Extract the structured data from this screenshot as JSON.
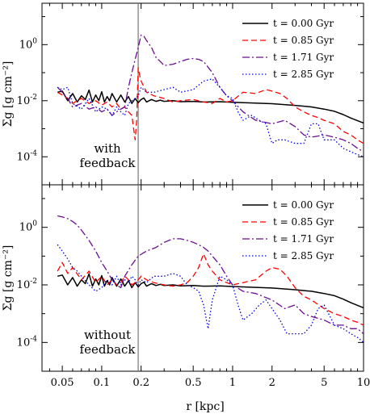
{
  "chart_data": [
    {
      "type": "line",
      "annotation": [
        "with",
        "feedback"
      ],
      "ylabel": "Σg [g cm⁻²]",
      "xlabel": "",
      "xscale": "log",
      "yscale": "log",
      "xlim": [
        0.035,
        10
      ],
      "ylim": [
        1e-05,
        30
      ],
      "xticks": [
        {
          "v": 0.05,
          "label": "0.05"
        },
        {
          "v": 0.1,
          "label": "0.1"
        },
        {
          "v": 0.2,
          "label": "0.2"
        },
        {
          "v": 0.5,
          "label": "0.5"
        },
        {
          "v": 1,
          "label": "1"
        },
        {
          "v": 2,
          "label": "2"
        },
        {
          "v": 5,
          "label": "5"
        },
        {
          "v": 10,
          "label": "10"
        }
      ],
      "show_xtick_labels": false,
      "yticks": [
        {
          "v": 1,
          "b": "10",
          "e": "0"
        },
        {
          "v": 0.01,
          "b": "10",
          "e": "-2"
        },
        {
          "v": 0.0001,
          "b": "10",
          "e": "-4"
        }
      ],
      "vline_x": 0.19,
      "legend_position": "top-right",
      "series": [
        {
          "name": "t = 0.00 Gyr",
          "color": "#000000",
          "dash": "",
          "x": [
            0.046,
            0.05,
            0.055,
            0.06,
            0.065,
            0.07,
            0.075,
            0.08,
            0.085,
            0.09,
            0.095,
            0.1,
            0.105,
            0.11,
            0.115,
            0.12,
            0.13,
            0.14,
            0.15,
            0.16,
            0.17,
            0.18,
            0.19,
            0.2,
            0.21,
            0.22,
            0.24,
            0.26,
            0.28,
            0.3,
            0.35,
            0.4,
            0.5,
            0.6,
            0.8,
            1,
            1.5,
            2,
            3,
            4,
            5,
            6,
            7,
            8,
            10
          ],
          "y": [
            0.02,
            0.022,
            0.01,
            0.018,
            0.009,
            0.015,
            0.011,
            0.024,
            0.009,
            0.016,
            0.01,
            0.021,
            0.009,
            0.014,
            0.01,
            0.018,
            0.009,
            0.016,
            0.009,
            0.014,
            0.008,
            0.012,
            0.0085,
            0.011,
            0.0125,
            0.009,
            0.011,
            0.0095,
            0.0105,
            0.0095,
            0.01,
            0.0092,
            0.0095,
            0.009,
            0.0092,
            0.0088,
            0.0082,
            0.0078,
            0.0068,
            0.006,
            0.005,
            0.0042,
            0.0032,
            0.0024,
            0.0016
          ]
        },
        {
          "name": "t = 0.85 Gyr",
          "color": "#ff0000",
          "dash": "7,4",
          "x": [
            0.046,
            0.05,
            0.055,
            0.06,
            0.065,
            0.07,
            0.08,
            0.09,
            0.1,
            0.11,
            0.12,
            0.13,
            0.14,
            0.15,
            0.16,
            0.17,
            0.18,
            0.185,
            0.19,
            0.195,
            0.2,
            0.22,
            0.25,
            0.3,
            0.35,
            0.4,
            0.5,
            0.6,
            0.7,
            0.8,
            0.9,
            1,
            1.2,
            1.5,
            1.8,
            2,
            2.3,
            2.6,
            3,
            3.5,
            4,
            4.5,
            5,
            6,
            7,
            8,
            9,
            10
          ],
          "y": [
            0.02,
            0.016,
            0.012,
            0.008,
            0.01,
            0.012,
            0.008,
            0.01,
            0.007,
            0.009,
            0.006,
            0.008,
            0.005,
            0.006,
            0.004,
            0.003,
            0.0004,
            0.002,
            0.15,
            0.08,
            0.05,
            0.02,
            0.015,
            0.012,
            0.009,
            0.01,
            0.011,
            0.009,
            0.008,
            0.012,
            0.009,
            0.01,
            0.02,
            0.018,
            0.025,
            0.022,
            0.018,
            0.012,
            0.006,
            0.004,
            0.003,
            0.0025,
            0.002,
            0.0015,
            0.0008,
            0.0006,
            0.0004,
            0.0003
          ]
        },
        {
          "name": "t = 1.71 Gyr",
          "color": "#6a0d91",
          "dash": "9,3,2,3",
          "x": [
            0.046,
            0.05,
            0.055,
            0.06,
            0.07,
            0.08,
            0.09,
            0.1,
            0.11,
            0.12,
            0.13,
            0.14,
            0.15,
            0.16,
            0.17,
            0.18,
            0.19,
            0.2,
            0.21,
            0.22,
            0.24,
            0.26,
            0.28,
            0.3,
            0.35,
            0.4,
            0.45,
            0.5,
            0.55,
            0.6,
            0.7,
            0.8,
            0.9,
            1,
            1.2,
            1.5,
            2,
            2.5,
            3,
            3.5,
            4,
            5,
            6,
            7,
            8,
            9,
            10
          ],
          "y": [
            0.03,
            0.02,
            0.012,
            0.006,
            0.008,
            0.005,
            0.006,
            0.004,
            0.005,
            0.003,
            0.004,
            0.005,
            0.006,
            0.03,
            0.1,
            0.3,
            0.8,
            2.2,
            2.0,
            1.4,
            0.8,
            0.35,
            0.25,
            0.18,
            0.2,
            0.25,
            0.3,
            0.32,
            0.3,
            0.25,
            0.1,
            0.03,
            0.015,
            0.01,
            0.004,
            0.002,
            0.0015,
            0.002,
            0.0012,
            0.0006,
            0.0005,
            0.0006,
            0.0005,
            0.0004,
            0.0003,
            0.0002,
            0.00015
          ]
        },
        {
          "name": "t = 2.85 Gyr",
          "color": "#0000dd",
          "dash": "1.5,2.5",
          "x": [
            0.046,
            0.05,
            0.055,
            0.06,
            0.07,
            0.08,
            0.09,
            0.1,
            0.11,
            0.12,
            0.13,
            0.14,
            0.15,
            0.16,
            0.17,
            0.18,
            0.19,
            0.2,
            0.22,
            0.25,
            0.3,
            0.35,
            0.4,
            0.5,
            0.6,
            0.7,
            0.8,
            0.9,
            1,
            1.1,
            1.2,
            1.4,
            1.6,
            1.8,
            2,
            2.2,
            2.5,
            3,
            3.5,
            4,
            4.5,
            5,
            6,
            7,
            8,
            9,
            10
          ],
          "y": [
            0.03,
            0.025,
            0.03,
            0.008,
            0.005,
            0.012,
            0.004,
            0.006,
            0.005,
            0.003,
            0.006,
            0.004,
            0.003,
            0.008,
            0.01,
            0.012,
            0.015,
            0.03,
            0.02,
            0.02,
            0.025,
            0.03,
            0.02,
            0.025,
            0.05,
            0.06,
            0.03,
            0.015,
            0.012,
            0.004,
            0.002,
            0.003,
            0.002,
            0.0015,
            0.0003,
            0.0004,
            0.0004,
            0.0003,
            0.0003,
            0.0015,
            0.0015,
            0.0004,
            0.0004,
            0.0002,
            0.00015,
            0.00012,
            0.0001
          ]
        }
      ]
    },
    {
      "type": "line",
      "annotation": [
        "without",
        "feedback"
      ],
      "ylabel": "Σg [g cm⁻²]",
      "xlabel": "r [kpc]",
      "xscale": "log",
      "yscale": "log",
      "xlim": [
        0.035,
        10
      ],
      "ylim": [
        1e-05,
        30
      ],
      "xticks": [
        {
          "v": 0.05,
          "label": "0.05"
        },
        {
          "v": 0.1,
          "label": "0.1"
        },
        {
          "v": 0.2,
          "label": "0.2"
        },
        {
          "v": 0.5,
          "label": "0.5"
        },
        {
          "v": 1,
          "label": "1"
        },
        {
          "v": 2,
          "label": "2"
        },
        {
          "v": 5,
          "label": "5"
        },
        {
          "v": 10,
          "label": "10"
        }
      ],
      "show_xtick_labels": true,
      "yticks": [
        {
          "v": 1,
          "b": "10",
          "e": "0"
        },
        {
          "v": 0.01,
          "b": "10",
          "e": "-2"
        },
        {
          "v": 0.0001,
          "b": "10",
          "e": "-4"
        }
      ],
      "vline_x": 0.19,
      "legend_position": "top-right",
      "series": [
        {
          "name": "t = 0.00 Gyr",
          "color": "#000000",
          "dash": "",
          "x": [
            0.046,
            0.05,
            0.055,
            0.06,
            0.065,
            0.07,
            0.075,
            0.08,
            0.085,
            0.09,
            0.095,
            0.1,
            0.105,
            0.11,
            0.115,
            0.12,
            0.13,
            0.14,
            0.15,
            0.16,
            0.17,
            0.18,
            0.19,
            0.2,
            0.21,
            0.22,
            0.24,
            0.26,
            0.28,
            0.3,
            0.35,
            0.4,
            0.5,
            0.6,
            0.8,
            1,
            1.5,
            2,
            3,
            4,
            5,
            6,
            7,
            8,
            10
          ],
          "y": [
            0.02,
            0.022,
            0.01,
            0.018,
            0.009,
            0.015,
            0.011,
            0.024,
            0.009,
            0.016,
            0.01,
            0.021,
            0.009,
            0.014,
            0.01,
            0.018,
            0.009,
            0.016,
            0.009,
            0.014,
            0.008,
            0.012,
            0.0085,
            0.011,
            0.0125,
            0.009,
            0.011,
            0.0095,
            0.0105,
            0.0095,
            0.01,
            0.0092,
            0.0095,
            0.009,
            0.0092,
            0.0088,
            0.0082,
            0.0078,
            0.0068,
            0.006,
            0.005,
            0.0042,
            0.0032,
            0.0024,
            0.0016
          ]
        },
        {
          "name": "t = 0.85 Gyr",
          "color": "#ff0000",
          "dash": "7,4",
          "x": [
            0.046,
            0.05,
            0.055,
            0.06,
            0.07,
            0.08,
            0.09,
            0.1,
            0.11,
            0.12,
            0.13,
            0.14,
            0.15,
            0.16,
            0.17,
            0.18,
            0.19,
            0.2,
            0.22,
            0.25,
            0.3,
            0.35,
            0.4,
            0.45,
            0.5,
            0.55,
            0.6,
            0.65,
            0.7,
            0.8,
            0.9,
            1,
            1.2,
            1.5,
            1.8,
            2,
            2.3,
            2.6,
            3,
            3.5,
            4,
            5,
            6,
            7,
            8,
            9,
            10
          ],
          "y": [
            0.03,
            0.06,
            0.025,
            0.04,
            0.015,
            0.03,
            0.012,
            0.02,
            0.01,
            0.015,
            0.01,
            0.012,
            0.02,
            0.015,
            0.01,
            0.012,
            0.015,
            0.02,
            0.015,
            0.012,
            0.01,
            0.009,
            0.01,
            0.012,
            0.02,
            0.04,
            0.12,
            0.05,
            0.03,
            0.015,
            0.012,
            0.01,
            0.012,
            0.015,
            0.03,
            0.04,
            0.035,
            0.02,
            0.008,
            0.004,
            0.003,
            0.0015,
            0.001,
            0.0008,
            0.0006,
            0.0005,
            0.0004
          ]
        },
        {
          "name": "t = 1.71 Gyr",
          "color": "#6a0d91",
          "dash": "9,3,2,3",
          "x": [
            0.046,
            0.05,
            0.055,
            0.06,
            0.065,
            0.07,
            0.08,
            0.09,
            0.1,
            0.11,
            0.12,
            0.13,
            0.14,
            0.15,
            0.17,
            0.19,
            0.22,
            0.26,
            0.3,
            0.35,
            0.4,
            0.45,
            0.5,
            0.55,
            0.6,
            0.65,
            0.7,
            0.8,
            0.9,
            1,
            1.2,
            1.5,
            2,
            2.5,
            3,
            3.5,
            4,
            5,
            6,
            7,
            8,
            9,
            10
          ],
          "y": [
            2.5,
            2.3,
            2.0,
            1.6,
            1.2,
            0.8,
            0.35,
            0.15,
            0.06,
            0.03,
            0.015,
            0.01,
            0.008,
            0.02,
            0.05,
            0.1,
            0.15,
            0.2,
            0.3,
            0.4,
            0.4,
            0.35,
            0.3,
            0.25,
            0.2,
            0.15,
            0.1,
            0.05,
            0.02,
            0.01,
            0.006,
            0.005,
            0.003,
            0.0015,
            0.002,
            0.001,
            0.0008,
            0.0006,
            0.0004,
            0.0004,
            0.0003,
            0.0003,
            0.0002
          ]
        },
        {
          "name": "t = 2.85 Gyr",
          "color": "#0000dd",
          "dash": "1.5,2.5",
          "x": [
            0.046,
            0.05,
            0.055,
            0.06,
            0.065,
            0.07,
            0.08,
            0.09,
            0.1,
            0.11,
            0.12,
            0.13,
            0.14,
            0.15,
            0.16,
            0.17,
            0.18,
            0.19,
            0.2,
            0.22,
            0.25,
            0.3,
            0.35,
            0.4,
            0.45,
            0.5,
            0.55,
            0.6,
            0.65,
            0.7,
            0.8,
            0.9,
            1,
            1.1,
            1.2,
            1.4,
            1.6,
            1.8,
            2,
            2.3,
            2.6,
            3,
            3.5,
            4,
            4.5,
            5,
            6,
            7,
            8,
            9,
            10
          ],
          "y": [
            0.25,
            0.15,
            0.08,
            0.04,
            0.03,
            0.02,
            0.01,
            0.006,
            0.008,
            0.015,
            0.01,
            0.02,
            0.01,
            0.015,
            0.012,
            0.02,
            0.015,
            0.01,
            0.015,
            0.012,
            0.02,
            0.02,
            0.025,
            0.02,
            0.01,
            0.008,
            0.006,
            0.002,
            0.0003,
            0.003,
            0.02,
            0.015,
            0.01,
            0.002,
            0.0006,
            0.001,
            0.002,
            0.003,
            0.0015,
            0.0006,
            0.0002,
            0.0002,
            0.0002,
            0.0004,
            0.0015,
            0.002,
            0.0004,
            0.0003,
            0.0002,
            0.00015,
            0.0001
          ]
        }
      ]
    }
  ]
}
